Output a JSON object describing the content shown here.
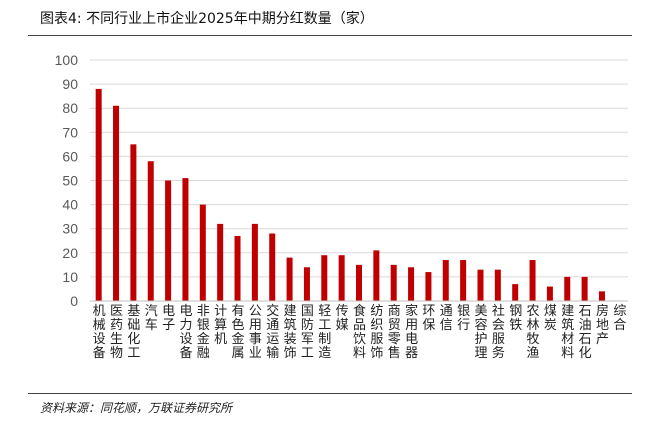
{
  "figure_title": "图表4:  不同行业上市企业2025年中期分红数量（家）",
  "source": "资料来源：同花顺，万联证券研究所",
  "colors": {
    "bar": "#c00000",
    "grid": "#d9d9d9",
    "axis": "#bfbfbf",
    "tick_text": "#595959"
  },
  "chart_data": {
    "type": "bar",
    "title": "",
    "xlabel": "",
    "ylabel": "",
    "ylim": [
      0,
      100
    ],
    "yticks": [
      0,
      10,
      20,
      30,
      40,
      50,
      60,
      70,
      80,
      90,
      100
    ],
    "grid": true,
    "legend": "none",
    "categories": [
      "机械设备",
      "医药生物",
      "基础化工",
      "汽车",
      "电子",
      "电力设备",
      "非银金融",
      "计算机",
      "有色金属",
      "公用事业",
      "交通运输",
      "建筑装饰",
      "国防军工",
      "轻工制造",
      "传媒",
      "食品饮料",
      "纺织服饰",
      "商贸零售",
      "家用电器",
      "环保",
      "通信",
      "银行",
      "美容护理",
      "社会服务",
      "钢铁",
      "农林牧渔",
      "煤炭",
      "建筑材料",
      "石油石化",
      "房地产",
      "综合"
    ],
    "values": [
      88,
      81,
      65,
      58,
      50,
      51,
      40,
      32,
      27,
      32,
      28,
      18,
      14,
      19,
      19,
      15,
      21,
      15,
      14,
      12,
      17,
      17,
      13,
      13,
      7,
      17,
      6,
      10,
      10,
      4,
      0
    ]
  }
}
